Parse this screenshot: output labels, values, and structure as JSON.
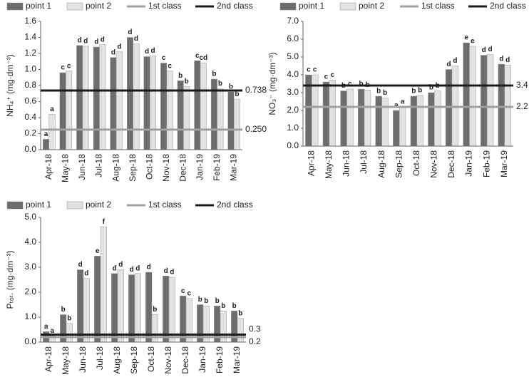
{
  "chart_data": [
    {
      "type": "bar",
      "ylabel": "NH₄⁺ (mg·dm⁻³)",
      "categories": [
        "Apr-18",
        "May-18",
        "Jun-18",
        "Jul-18",
        "Aug-18",
        "Sep-18",
        "Oct-18",
        "Nov-18",
        "Dec-18",
        "Jan-19",
        "Feb-19",
        "Mar-19"
      ],
      "series": [
        {
          "name": "point 1",
          "color": "#6d6d6d",
          "values": [
            0.13,
            0.96,
            1.3,
            1.28,
            1.15,
            1.4,
            1.16,
            1.08,
            0.86,
            1.11,
            0.88,
            0.72
          ],
          "labels": [
            "a",
            "c",
            "d",
            "d",
            "d",
            "d",
            "d",
            "c",
            "b",
            "c",
            "b",
            "b"
          ]
        },
        {
          "name": "point 2",
          "color": "#e2e2e2",
          "values": [
            0.44,
            0.98,
            1.29,
            1.31,
            1.22,
            1.32,
            1.17,
            0.98,
            0.79,
            1.08,
            0.76,
            0.63
          ],
          "labels": [
            "a",
            "c",
            "d",
            "d",
            "d",
            "d",
            "d",
            "c",
            "b",
            "cd",
            "b",
            "b"
          ]
        }
      ],
      "thresholds": [
        {
          "name": "1st class",
          "color": "#a0a0a0",
          "value": 0.25,
          "label": "0.250"
        },
        {
          "name": "2nd class",
          "color": "#1a1a1a",
          "value": 0.738,
          "label": "0.738"
        }
      ],
      "ylim": [
        0,
        1.6
      ],
      "yticks": [
        {
          "value": 0,
          "label": "0.0"
        },
        0.2,
        0.4,
        0.6,
        0.8,
        {
          "value": 1,
          "label": "1.0"
        },
        1.2,
        1.4,
        1.6
      ]
    },
    {
      "type": "bar",
      "ylabel": "NO₃⁻ (mg·dm⁻³)",
      "categories": [
        "Apr-18",
        "May-18",
        "Jun-18",
        "Jul-18",
        "Aug-18",
        "Sep-18",
        "Oct-18",
        "Nov-18",
        "Dec-18",
        "Jan-19",
        "Feb-19",
        "Mar-19"
      ],
      "series": [
        {
          "name": "point 1",
          "color": "#6d6d6d",
          "values": [
            4.0,
            3.6,
            3.1,
            3.2,
            2.8,
            2.0,
            2.8,
            3.0,
            4.3,
            5.8,
            5.1,
            4.6
          ],
          "labels": [
            "c",
            "c",
            "b",
            "b",
            "b",
            "a",
            "b",
            "b",
            "d",
            "e",
            "d",
            "d"
          ]
        },
        {
          "name": "point 2",
          "color": "#e2e2e2",
          "values": [
            4.0,
            3.7,
            3.2,
            3.15,
            2.7,
            2.2,
            2.85,
            3.1,
            4.5,
            5.6,
            5.15,
            4.55
          ],
          "labels": [
            "c",
            "c",
            "c",
            "b",
            "b",
            "a",
            "b",
            "b",
            "d",
            "e",
            "d",
            "d"
          ]
        }
      ],
      "thresholds": [
        {
          "name": "1st class",
          "color": "#a0a0a0",
          "value": 2.2,
          "label": "2.2"
        },
        {
          "name": "2nd class",
          "color": "#1a1a1a",
          "value": 3.4,
          "label": "3.4"
        }
      ],
      "ylim": [
        0,
        7
      ],
      "yticks": [
        {
          "value": 0,
          "label": "0.0"
        },
        {
          "value": 1,
          "label": "1.0"
        },
        {
          "value": 2,
          "label": "2.0"
        },
        {
          "value": 3,
          "label": "3.0"
        },
        {
          "value": 4,
          "label": "4.0"
        },
        {
          "value": 5,
          "label": "5.0"
        },
        {
          "value": 6,
          "label": "6.0"
        },
        {
          "value": 7,
          "label": "7.0"
        }
      ]
    },
    {
      "type": "bar",
      "ylabel": "Pₜₒₜ. (mg·dm⁻³)",
      "categories": [
        "Apr-18",
        "May-18",
        "Jun-18",
        "Jul-18",
        "Aug-18",
        "Sep-18",
        "Oct-18",
        "Nov-18",
        "Dec-18",
        "Jan-19",
        "Feb-19",
        "Mar-19"
      ],
      "series": [
        {
          "name": "point 1",
          "color": "#6d6d6d",
          "values": [
            0.42,
            1.1,
            2.9,
            3.45,
            2.75,
            2.7,
            2.8,
            2.65,
            1.85,
            1.5,
            1.45,
            1.25
          ],
          "labels": [
            "a",
            "b",
            "d",
            "e",
            "d",
            "d",
            "d",
            "d",
            "c",
            "b",
            "b",
            "b"
          ]
        },
        {
          "name": "point 2",
          "color": "#e2e2e2",
          "values": [
            0.25,
            0.75,
            2.55,
            4.62,
            2.9,
            2.75,
            1.1,
            2.6,
            1.75,
            1.45,
            1.25,
            0.95
          ],
          "labels": [
            "a",
            "b",
            "d",
            "f",
            "d",
            "d",
            "b",
            "d",
            "c",
            "b",
            "b",
            "b"
          ]
        }
      ],
      "thresholds": [
        {
          "name": "1st class",
          "color": "#a0a0a0",
          "value": 0.2,
          "label": "0.2"
        },
        {
          "name": "2nd class",
          "color": "#1a1a1a",
          "value": 0.3,
          "label": "0.3"
        }
      ],
      "ylim": [
        0,
        5
      ],
      "yticks": [
        {
          "value": 0,
          "label": "0.0"
        },
        {
          "value": 1,
          "label": "1.0"
        },
        {
          "value": 2,
          "label": "2.0"
        },
        {
          "value": 3,
          "label": "3.0"
        },
        {
          "value": 4,
          "label": "4.0"
        },
        {
          "value": 5,
          "label": "5.0"
        }
      ]
    }
  ]
}
